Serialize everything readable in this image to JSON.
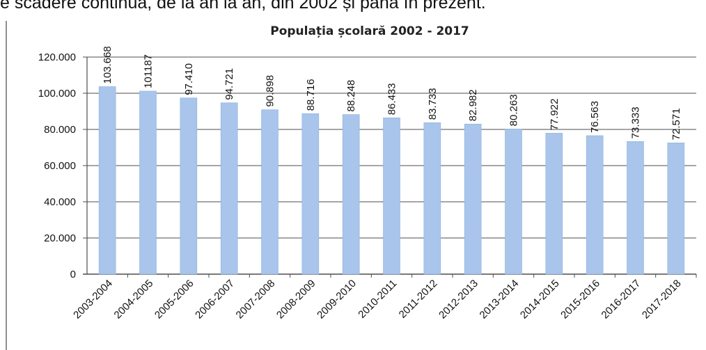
{
  "page_text": {
    "top_line": "e scădere continuă, de la an la an, din 2002 și până în prezent."
  },
  "colors": {
    "bar": "#a9c5eb",
    "bar_edge": "#8eb1de",
    "grid": "#4d4d4d",
    "frame": "#555555"
  },
  "chart_data": {
    "type": "bar",
    "title": "Populația școlară 2002 - 2017",
    "categories": [
      "2003-2004",
      "2004-2005",
      "2005-2006",
      "2006-2007",
      "2007-2008",
      "2008-2009",
      "2009-2010",
      "2010-2011",
      "2011-2012",
      "2012-2013",
      "2013-2014",
      "2014-2015",
      "2015-2016",
      "2016-2017",
      "2017-2018"
    ],
    "values": [
      103668,
      101187,
      97410,
      94721,
      90898,
      88716,
      88248,
      86433,
      83733,
      82982,
      80263,
      77922,
      76563,
      73333,
      72571
    ],
    "data_labels": [
      "103.668",
      "101187",
      "97.410",
      "94.721",
      "90.898",
      "88.716",
      "88.248",
      "86.433",
      "83.733",
      "82.982",
      "80.263",
      "77.922",
      "76.563",
      "73.333",
      "72.571"
    ],
    "y_ticks": [
      0,
      20000,
      40000,
      60000,
      80000,
      100000,
      120000
    ],
    "y_tick_labels": [
      "0",
      "20.000",
      "40.000",
      "60.000",
      "80.000",
      "100.000",
      "120.000"
    ],
    "ylim": [
      0,
      120000
    ],
    "xlabel": "",
    "ylabel": "",
    "grid": true,
    "legend": "none"
  }
}
